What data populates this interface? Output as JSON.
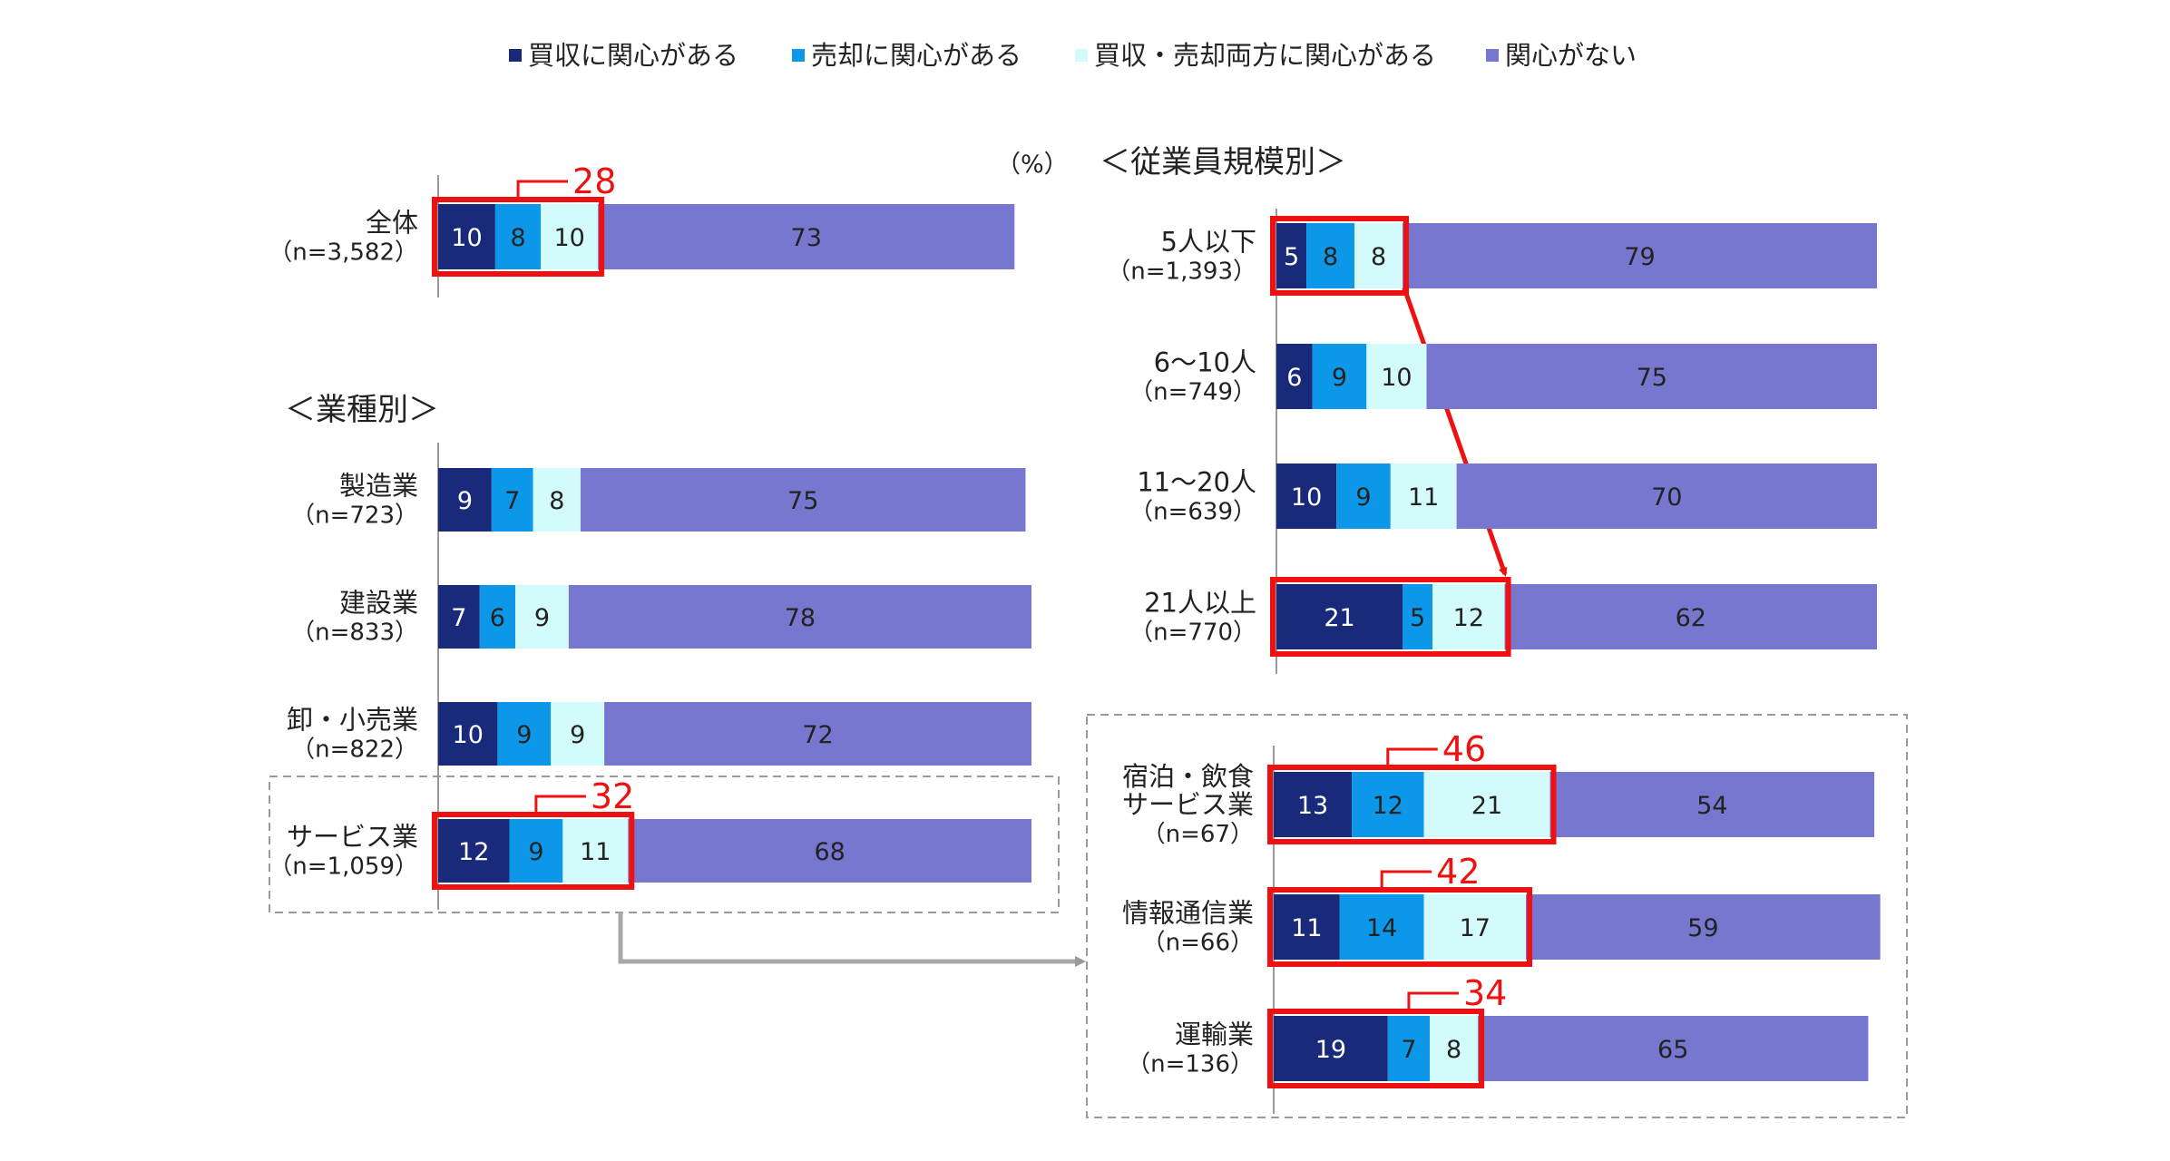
{
  "legend": [
    {
      "label": "買収に関心がある",
      "color": "#1a2a7a"
    },
    {
      "label": "売却に関心がある",
      "color": "#0d97e8"
    },
    {
      "label": "買収・売却両方に関心がある",
      "color": "#d4fbfb"
    },
    {
      "label": "関心がない",
      "color": "#7777d0"
    }
  ],
  "unit_label": "（%）",
  "section_industry_title": "＜業種別＞",
  "section_size_title": "＜従業員規模別＞",
  "chart_data": {
    "type": "bar",
    "orientation": "horizontal",
    "stacked": true,
    "unit": "%",
    "series_names": [
      "買収に関心がある",
      "売却に関心がある",
      "買収・売却両方に関心がある",
      "関心がない"
    ],
    "groups": [
      {
        "group": "overall",
        "title": "",
        "rows": [
          {
            "label": "全体",
            "n": "（n=3,582）",
            "values": [
              10,
              8,
              10,
              73
            ],
            "highlight": "28"
          }
        ]
      },
      {
        "group": "industry",
        "title": "＜業種別＞",
        "rows": [
          {
            "label": "製造業",
            "n": "（n=723）",
            "values": [
              9,
              7,
              8,
              75
            ],
            "highlight": ""
          },
          {
            "label": "建設業",
            "n": "（n=833）",
            "values": [
              7,
              6,
              9,
              78
            ],
            "highlight": ""
          },
          {
            "label": "卸・小売業",
            "n": "（n=822）",
            "values": [
              10,
              9,
              9,
              72
            ],
            "highlight": ""
          },
          {
            "label": "サービス業",
            "n": "（n=1,059）",
            "values": [
              12,
              9,
              11,
              68
            ],
            "highlight": "32"
          }
        ]
      },
      {
        "group": "size",
        "title": "＜従業員規模別＞",
        "rows": [
          {
            "label": "5人以下",
            "n": "（n=1,393）",
            "values": [
              5,
              8,
              8,
              79
            ],
            "highlight": "box"
          },
          {
            "label": "6～10人",
            "n": "（n=749）",
            "values": [
              6,
              9,
              10,
              75
            ],
            "highlight": ""
          },
          {
            "label": "11～20人",
            "n": "（n=639）",
            "values": [
              10,
              9,
              11,
              70
            ],
            "highlight": ""
          },
          {
            "label": "21人以上",
            "n": "（n=770）",
            "values": [
              21,
              5,
              12,
              62
            ],
            "highlight": "box"
          }
        ]
      },
      {
        "group": "service_detail",
        "title": "",
        "rows": [
          {
            "label": "宿泊・飲食|サービス業",
            "n": "（n=67）",
            "values": [
              13,
              12,
              21,
              54
            ],
            "highlight": "46"
          },
          {
            "label": "情報通信業",
            "n": "（n=66）",
            "values": [
              11,
              14,
              17,
              59
            ],
            "highlight": "42"
          },
          {
            "label": "運輸業",
            "n": "（n=136）",
            "values": [
              19,
              7,
              8,
              65
            ],
            "highlight": "34"
          }
        ]
      }
    ]
  }
}
